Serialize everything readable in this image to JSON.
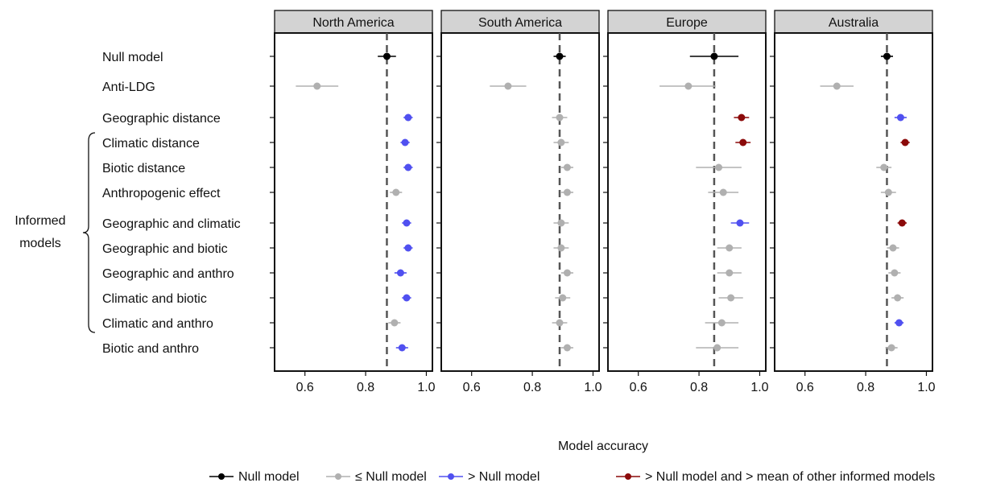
{
  "chart_data": {
    "type": "scatter",
    "xlabel": "Model accuracy",
    "xlim": [
      0.5,
      1.02
    ],
    "xticks": [
      0.6,
      0.8,
      1.0
    ],
    "xtick_labels": [
      "0.6",
      "0.8",
      "1.0"
    ],
    "grid": false,
    "legend_position": "bottom",
    "rows": [
      "Null model",
      "Anti-LDG",
      "Geographic distance",
      "Climatic distance",
      "Biotic distance",
      "Anthropogenic effect",
      "Geographic and climatic",
      "Geographic and biotic",
      "Geographic and anthro",
      "Climatic and biotic",
      "Climatic and anthro",
      "Biotic and anthro"
    ],
    "group_label": "Informed\nmodels",
    "group_range": [
      "Climatic distance",
      "Climatic and anthro"
    ],
    "categories_colors": {
      "null": "#000000",
      "le_null": "#b0b0b0",
      "gt_null": "#5050f0",
      "gt_null_mean": "#8b0a0a"
    },
    "legend": [
      {
        "key": "null",
        "label": "Null model"
      },
      {
        "key": "le_null",
        "label": "≤ Null model"
      },
      {
        "key": "gt_null",
        "label": "> Null model"
      },
      {
        "key": "gt_null_mean",
        "label": "> Null model and > mean of other informed models"
      }
    ],
    "panels": [
      {
        "title": "North America",
        "null_line": 0.87,
        "points": [
          {
            "value": 0.87,
            "lo": 0.84,
            "hi": 0.9,
            "cat": "null"
          },
          {
            "value": 0.64,
            "lo": 0.57,
            "hi": 0.71,
            "cat": "le_null"
          },
          {
            "value": 0.94,
            "lo": 0.925,
            "hi": 0.955,
            "cat": "gt_null"
          },
          {
            "value": 0.93,
            "lo": 0.915,
            "hi": 0.945,
            "cat": "gt_null"
          },
          {
            "value": 0.94,
            "lo": 0.925,
            "hi": 0.955,
            "cat": "gt_null"
          },
          {
            "value": 0.9,
            "lo": 0.88,
            "hi": 0.92,
            "cat": "le_null"
          },
          {
            "value": 0.935,
            "lo": 0.92,
            "hi": 0.95,
            "cat": "gt_null"
          },
          {
            "value": 0.94,
            "lo": 0.925,
            "hi": 0.955,
            "cat": "gt_null"
          },
          {
            "value": 0.915,
            "lo": 0.895,
            "hi": 0.935,
            "cat": "gt_null"
          },
          {
            "value": 0.935,
            "lo": 0.92,
            "hi": 0.95,
            "cat": "gt_null"
          },
          {
            "value": 0.895,
            "lo": 0.875,
            "hi": 0.915,
            "cat": "le_null"
          },
          {
            "value": 0.92,
            "lo": 0.9,
            "hi": 0.94,
            "cat": "gt_null"
          }
        ]
      },
      {
        "title": "South America",
        "null_line": 0.89,
        "points": [
          {
            "value": 0.89,
            "lo": 0.87,
            "hi": 0.91,
            "cat": "null"
          },
          {
            "value": 0.72,
            "lo": 0.66,
            "hi": 0.78,
            "cat": "le_null"
          },
          {
            "value": 0.89,
            "lo": 0.865,
            "hi": 0.915,
            "cat": "le_null"
          },
          {
            "value": 0.895,
            "lo": 0.87,
            "hi": 0.92,
            "cat": "le_null"
          },
          {
            "value": 0.915,
            "lo": 0.895,
            "hi": 0.935,
            "cat": "le_null"
          },
          {
            "value": 0.915,
            "lo": 0.895,
            "hi": 0.935,
            "cat": "le_null"
          },
          {
            "value": 0.895,
            "lo": 0.87,
            "hi": 0.92,
            "cat": "le_null"
          },
          {
            "value": 0.895,
            "lo": 0.87,
            "hi": 0.92,
            "cat": "le_null"
          },
          {
            "value": 0.915,
            "lo": 0.895,
            "hi": 0.935,
            "cat": "le_null"
          },
          {
            "value": 0.9,
            "lo": 0.875,
            "hi": 0.925,
            "cat": "le_null"
          },
          {
            "value": 0.89,
            "lo": 0.865,
            "hi": 0.915,
            "cat": "le_null"
          },
          {
            "value": 0.915,
            "lo": 0.895,
            "hi": 0.935,
            "cat": "le_null"
          }
        ]
      },
      {
        "title": "Europe",
        "null_line": 0.85,
        "points": [
          {
            "value": 0.85,
            "lo": 0.77,
            "hi": 0.93,
            "cat": "null"
          },
          {
            "value": 0.765,
            "lo": 0.67,
            "hi": 0.855,
            "cat": "le_null"
          },
          {
            "value": 0.94,
            "lo": 0.915,
            "hi": 0.965,
            "cat": "gt_null_mean"
          },
          {
            "value": 0.945,
            "lo": 0.92,
            "hi": 0.97,
            "cat": "gt_null_mean"
          },
          {
            "value": 0.865,
            "lo": 0.79,
            "hi": 0.94,
            "cat": "le_null"
          },
          {
            "value": 0.88,
            "lo": 0.83,
            "hi": 0.93,
            "cat": "le_null"
          },
          {
            "value": 0.935,
            "lo": 0.905,
            "hi": 0.965,
            "cat": "gt_null"
          },
          {
            "value": 0.9,
            "lo": 0.86,
            "hi": 0.94,
            "cat": "le_null"
          },
          {
            "value": 0.9,
            "lo": 0.86,
            "hi": 0.94,
            "cat": "le_null"
          },
          {
            "value": 0.905,
            "lo": 0.865,
            "hi": 0.945,
            "cat": "le_null"
          },
          {
            "value": 0.875,
            "lo": 0.82,
            "hi": 0.93,
            "cat": "le_null"
          },
          {
            "value": 0.86,
            "lo": 0.79,
            "hi": 0.93,
            "cat": "le_null"
          }
        ]
      },
      {
        "title": "Australia",
        "null_line": 0.87,
        "points": [
          {
            "value": 0.87,
            "lo": 0.85,
            "hi": 0.89,
            "cat": "null"
          },
          {
            "value": 0.705,
            "lo": 0.65,
            "hi": 0.76,
            "cat": "le_null"
          },
          {
            "value": 0.915,
            "lo": 0.895,
            "hi": 0.935,
            "cat": "gt_null"
          },
          {
            "value": 0.93,
            "lo": 0.915,
            "hi": 0.945,
            "cat": "gt_null_mean"
          },
          {
            "value": 0.86,
            "lo": 0.835,
            "hi": 0.885,
            "cat": "le_null"
          },
          {
            "value": 0.875,
            "lo": 0.85,
            "hi": 0.9,
            "cat": "le_null"
          },
          {
            "value": 0.92,
            "lo": 0.905,
            "hi": 0.935,
            "cat": "gt_null_mean"
          },
          {
            "value": 0.89,
            "lo": 0.87,
            "hi": 0.91,
            "cat": "le_null"
          },
          {
            "value": 0.895,
            "lo": 0.875,
            "hi": 0.915,
            "cat": "le_null"
          },
          {
            "value": 0.905,
            "lo": 0.885,
            "hi": 0.925,
            "cat": "le_null"
          },
          {
            "value": 0.91,
            "lo": 0.895,
            "hi": 0.925,
            "cat": "gt_null"
          },
          {
            "value": 0.885,
            "lo": 0.865,
            "hi": 0.905,
            "cat": "le_null"
          }
        ]
      }
    ]
  }
}
